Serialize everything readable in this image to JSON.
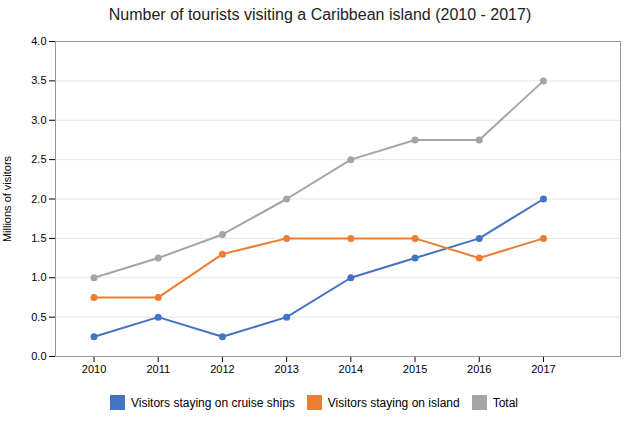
{
  "chart_data": {
    "type": "line",
    "title": "Number of tourists visiting a Caribbean island (2010 - 2017)",
    "ylabel": "Millions of visitors",
    "x": [
      2010,
      2011,
      2012,
      2013,
      2014,
      2015,
      2016,
      2017
    ],
    "series": [
      {
        "name": "Visitors staying on cruise ships",
        "color": "#4472c4",
        "values": [
          0.25,
          0.5,
          0.25,
          0.5,
          1.0,
          1.25,
          1.5,
          2.0
        ]
      },
      {
        "name": "Visitors staying on island",
        "color": "#ed7d31",
        "values": [
          0.75,
          0.75,
          1.3,
          1.5,
          1.5,
          1.5,
          1.25,
          1.5
        ]
      },
      {
        "name": "Total",
        "color": "#a5a5a5",
        "values": [
          1.0,
          1.25,
          1.55,
          2.0,
          2.5,
          2.75,
          2.75,
          3.5
        ]
      }
    ],
    "xlim": [
      2009.4,
      2018.2
    ],
    "xticks": [
      2010,
      2011,
      2012,
      2013,
      2014,
      2015,
      2016,
      2017
    ],
    "ylim": [
      0,
      4
    ],
    "yticks": [
      {
        "value": 0,
        "label": "0.0"
      },
      0.5,
      {
        "value": 1.0,
        "label": "1.0"
      },
      1.5,
      {
        "value": 2.0,
        "label": "2.0"
      },
      2.5,
      {
        "value": 3.0,
        "label": "3.0"
      },
      3.5,
      {
        "value": 4.0,
        "label": "4.0"
      }
    ],
    "grid": true,
    "legend": "bottom",
    "marker": "circle"
  }
}
